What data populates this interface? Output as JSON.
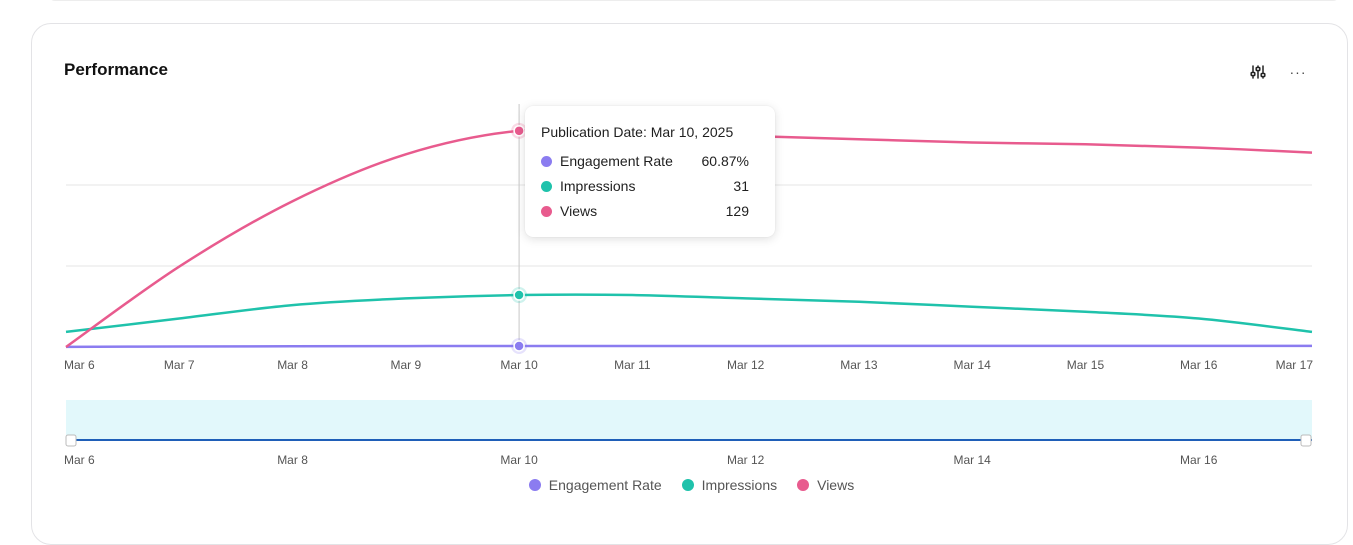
{
  "header": {
    "title": "Performance",
    "settings_icon": "sliders-icon",
    "more_icon": "more-horizontal-icon",
    "more_label": "···"
  },
  "colors": {
    "engagement": "#8b7cf0",
    "impressions": "#1fc2ab",
    "views": "#e85b8e",
    "brush_fill": "#e2f8fb",
    "brush_line": "#1f5fb8",
    "grid": "#e6e6e6"
  },
  "tooltip": {
    "title": "Publication Date: Mar 10, 2025",
    "rows": [
      {
        "label": "Engagement Rate",
        "value": "60.87%"
      },
      {
        "label": "Impressions",
        "value": "31"
      },
      {
        "label": "Views",
        "value": "129"
      }
    ]
  },
  "legend": [
    "Engagement Rate",
    "Impressions",
    "Views"
  ],
  "chart_data": {
    "type": "line",
    "x": [
      "Mar 6",
      "Mar 7",
      "Mar 8",
      "Mar 9",
      "Mar 10",
      "Mar 11",
      "Mar 12",
      "Mar 13",
      "Mar 14",
      "Mar 15",
      "Mar 16",
      "Mar 17"
    ],
    "series": [
      {
        "name": "Engagement Rate",
        "values": [
          0.1,
          0.3,
          0.45,
          0.55,
          0.6087,
          0.62,
          0.63,
          0.64,
          0.65,
          0.65,
          0.66,
          0.66
        ]
      },
      {
        "name": "Impressions",
        "values": [
          9,
          17,
          25,
          29,
          31,
          31,
          29,
          27,
          24,
          21,
          17,
          9
        ]
      },
      {
        "name": "Views",
        "values": [
          0,
          48,
          87,
          115,
          129,
          128,
          126,
          124,
          122,
          121,
          119,
          116
        ]
      }
    ],
    "ylim": [
      0,
      145
    ],
    "grid": true,
    "tooltip_index": 4,
    "brush_ticks": [
      "Mar 6",
      "Mar 8",
      "Mar 10",
      "Mar 12",
      "Mar 14",
      "Mar 16"
    ],
    "legend_position": "bottom"
  }
}
